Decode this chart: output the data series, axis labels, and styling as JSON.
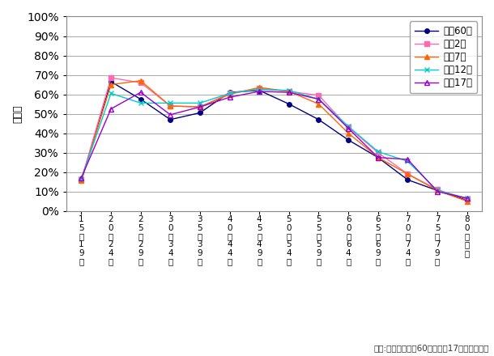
{
  "series": [
    {
      "name": "昭和60年",
      "color": "#000080",
      "marker": "o",
      "fillstyle": "full",
      "markersize": 4,
      "values": [
        15.5,
        66.5,
        57.5,
        47.0,
        50.5,
        61.0,
        62.0,
        55.0,
        47.0,
        36.5,
        27.5,
        16.0,
        10.5,
        5.5
      ]
    },
    {
      "name": "平成2年",
      "color": "#FF69B4",
      "marker": "s",
      "fillstyle": "full",
      "markersize": 4,
      "values": [
        16.0,
        68.5,
        66.0,
        54.0,
        53.5,
        60.5,
        63.0,
        61.5,
        59.5,
        43.0,
        30.0,
        19.0,
        11.0,
        6.0
      ]
    },
    {
      "name": "平成7年",
      "color": "#FF6600",
      "marker": "^",
      "fillstyle": "full",
      "markersize": 5,
      "values": [
        15.5,
        65.0,
        67.0,
        54.0,
        53.5,
        60.0,
        63.5,
        61.5,
        55.0,
        40.0,
        27.5,
        19.0,
        10.5,
        5.0
      ]
    },
    {
      "name": "平成12年",
      "color": "#00CCCC",
      "marker": "x",
      "fillstyle": "full",
      "markersize": 5,
      "values": [
        16.5,
        60.5,
        55.5,
        55.5,
        55.5,
        60.5,
        62.5,
        62.0,
        57.5,
        43.5,
        30.5,
        25.5,
        10.5,
        6.5
      ]
    },
    {
      "name": "平成17年",
      "color": "#9900CC",
      "marker": "^",
      "fillstyle": "none",
      "markersize": 5,
      "values": [
        17.0,
        52.5,
        61.0,
        49.5,
        53.5,
        58.5,
        61.5,
        61.0,
        57.5,
        42.5,
        27.5,
        26.5,
        10.0,
        6.5
      ]
    }
  ],
  "x_labels_line1": [
    "1",
    "2",
    "2",
    "3",
    "3",
    "4",
    "4",
    "5",
    "5",
    "6",
    "6",
    "7",
    "7",
    "8"
  ],
  "x_labels_line2": [
    "5",
    "0",
    "5",
    "0",
    "5",
    "0",
    "5",
    "0",
    "5",
    "0",
    "5",
    "0",
    "5",
    "0"
  ],
  "x_labels_line3": [
    "～",
    "～",
    "～",
    "～",
    "～",
    "～",
    "～",
    "～",
    "～",
    "～",
    "～",
    "～",
    "～",
    "歳"
  ],
  "x_labels_line4": [
    "1",
    "2",
    "2",
    "3",
    "3",
    "4",
    "4",
    "5",
    "5",
    "6",
    "6",
    "7",
    "7",
    "以"
  ],
  "x_labels_line5": [
    "9",
    "4",
    "9",
    "4",
    "9",
    "4",
    "9",
    "4",
    "9",
    "4",
    "9",
    "4",
    "9",
    "上"
  ],
  "x_labels_line6": [
    "歳",
    "歳",
    "歳",
    "歳",
    "歳",
    "歳",
    "歳",
    "歳",
    "歳",
    "歳",
    "歳",
    "歳",
    "歳",
    ""
  ],
  "ylabel": "就業率",
  "yticks": [
    0,
    10,
    20,
    30,
    40,
    50,
    60,
    70,
    80,
    90,
    100
  ],
  "ylim": [
    0,
    100
  ],
  "footnote": "出所:東京都、昭和60年～平成17年、国勢調査",
  "bg_color": "#FFFFFF",
  "grid_color": "#AAAAAA",
  "linewidth": 1.0
}
